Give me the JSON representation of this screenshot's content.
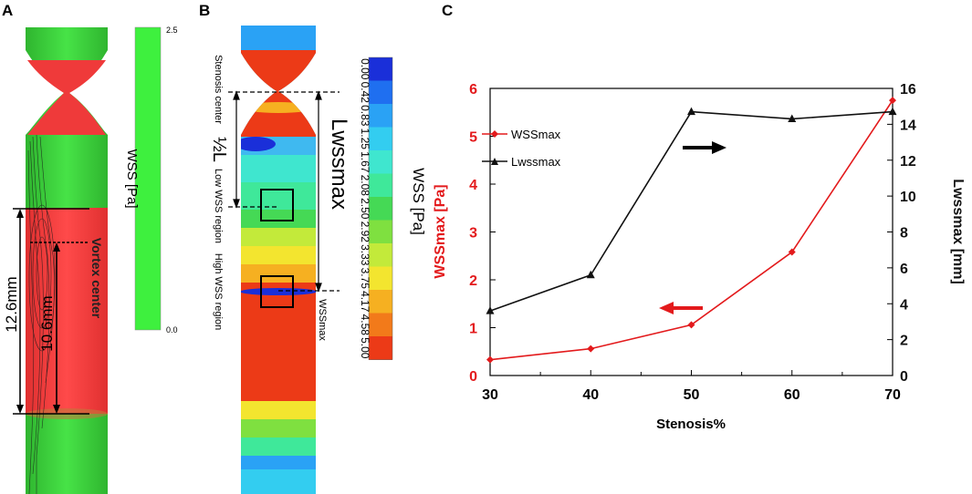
{
  "panels": {
    "a": {
      "letter": "A",
      "colorbar_label": "WSS [Pa]",
      "colorbar_max": "2.5",
      "colorbar_min": "0.0",
      "vortex_label": "Vortex center",
      "dim_outer": "12.6mm",
      "dim_inner": "10.6mm"
    },
    "b": {
      "letter": "B",
      "legend_title": "WSS [Pa]",
      "legend_ticks": [
        "0.00",
        "0.42",
        "0.83",
        "1.25",
        "1.67",
        "2.08",
        "2.50",
        "2.92",
        "3.33",
        "3.75",
        "4.17",
        "4.58",
        "5.00"
      ],
      "legend_colors": [
        "#1a2fd9",
        "#1f6ff0",
        "#2aa2f5",
        "#33cdf0",
        "#3fe6cf",
        "#3fe89a",
        "#45d955",
        "#7fe040",
        "#c3ea3a",
        "#f3e52f",
        "#f6b021",
        "#f27a1a",
        "#ec3a17"
      ],
      "label_stenosis": "Stenosis center",
      "label_half_l": "½L",
      "label_low": "Low WSS region",
      "label_high": "High WSS region",
      "label_lwss": "Lwssmax",
      "label_wssmax": "WSSmax"
    },
    "c": {
      "letter": "C"
    }
  },
  "chart_data": {
    "type": "line",
    "x": [
      30,
      40,
      50,
      60,
      70
    ],
    "xlabel": "Stenosis%",
    "xlim": [
      30,
      70
    ],
    "x_ticks": [
      "30",
      "40",
      "50",
      "60",
      "70"
    ],
    "series": [
      {
        "name": "WSSmax",
        "axis": "left",
        "color": "#e31a1c",
        "marker": "diamond",
        "values": [
          0.33,
          0.56,
          1.06,
          2.58,
          5.75
        ]
      },
      {
        "name": "Lwssmax",
        "axis": "right",
        "color": "#111111",
        "marker": "triangle",
        "values": [
          3.6,
          5.6,
          14.7,
          14.3,
          14.7
        ]
      }
    ],
    "ylabel_left": "WSSmax [Pa]",
    "ylim_left": [
      0,
      6
    ],
    "y_ticks_left": [
      "0",
      "1",
      "2",
      "3",
      "4",
      "5",
      "6"
    ],
    "ylabel_right": "Lwssmax [mm]",
    "ylim_right": [
      0,
      16
    ],
    "y_ticks_right": [
      "0",
      "2",
      "4",
      "6",
      "8",
      "10",
      "12",
      "14",
      "16"
    ],
    "legend_position": "top-left"
  }
}
